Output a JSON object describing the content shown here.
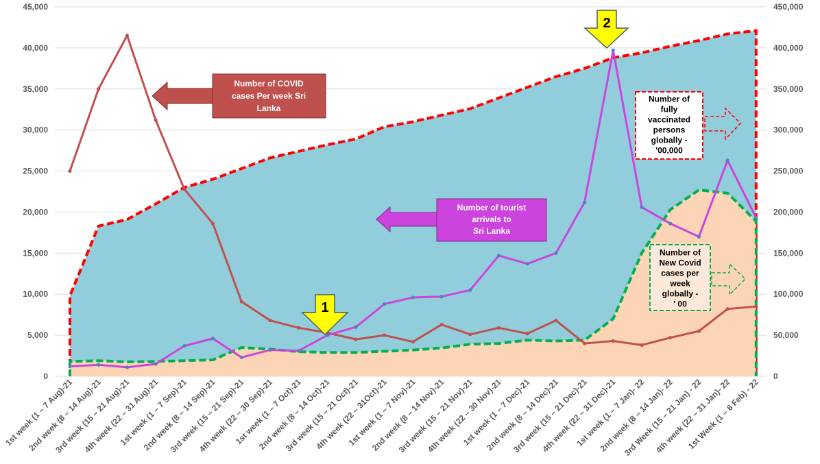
{
  "chart_data": {
    "type": "line",
    "categories": [
      "1st week (1 – 7 Aug)-21",
      "2nd week (8 – 14 Aug)-21",
      "3rd week (15 – 21 Aug)-21",
      "4th week (22 – 31 Aug)-21",
      "1st week (1 – 7 Sep)-21",
      "2nd week (8 – 14 Sep)-21",
      "3rd week (15 – 21 Sep)-21",
      "4th week (22 – 30 Sep)-21",
      "1st week (1 – 7 Oct)-21",
      "2nd week (8 – 14 Oct)-21",
      "3rd week (15 – 21 Oct)-21",
      "4th week (22 – 31Oct)-21",
      "1st week (1 – 7 Nov)-21",
      "2nd week (8 – 14 Nov)-21",
      "3rd week (15 – 21 Nov)-21",
      "4th week (22 – 30 Nov)-21",
      "1st week (1 – 7 Dec)-21",
      "2nd week (8 – 14 Dec)-21",
      "3rd week (15 – 21 Dec)-21",
      "4th week (22 – 31 Dec)-21",
      "1st week (1 – 7 Jan)- 22",
      "2nd week (8 – 14 Jan)- 22",
      "3rd Week (15 – 21 Jan) - 22",
      "4th week (22 – 31 Jan)- 22",
      "1st Week (1 – 6 Feb) - 22"
    ],
    "left_axis": {
      "ylim": [
        0,
        45000
      ],
      "tick_labels": [
        "0",
        "5,000",
        "10,000",
        "15,000",
        "20,000",
        "25,000",
        "30,000",
        "35,000",
        "40,000",
        "45,000"
      ]
    },
    "right_axis": {
      "ylim": [
        0,
        450000
      ],
      "tick_labels": [
        "0",
        "50,000",
        "100,000",
        "150,000",
        "200,000",
        "250,000",
        "300,000",
        "350,000",
        "400,000",
        "450,000"
      ]
    },
    "grid": true,
    "series": [
      {
        "name": "Number of fully vaccinated persons globally - '00,000",
        "kind": "area",
        "axis": "right",
        "fill": "#92cddc",
        "stroke": "#ff0000",
        "values": [
          98000,
          183000,
          191000,
          210000,
          230000,
          240000,
          253000,
          266000,
          274000,
          282000,
          289000,
          304000,
          310000,
          318000,
          326000,
          339000,
          352000,
          365000,
          375000,
          388000,
          394000,
          402000,
          409000,
          417000,
          421000
        ]
      },
      {
        "name": "Number of New Covid cases per week globally - ' 00",
        "kind": "area",
        "axis": "right",
        "fill": "#fbd5b5",
        "stroke": "#00b050",
        "values": [
          18000,
          19000,
          17500,
          18000,
          19000,
          20000,
          35000,
          33000,
          30000,
          29000,
          29000,
          30500,
          32000,
          34500,
          39000,
          40000,
          44000,
          43000,
          44000,
          70000,
          150000,
          203000,
          227000,
          223000,
          189000
        ]
      },
      {
        "name": "Number of COVID cases Per week  Sri Lanka",
        "kind": "line",
        "axis": "left",
        "color": "#c0504d",
        "values": [
          25000,
          35000,
          41500,
          31200,
          22800,
          18600,
          9100,
          6800,
          5900,
          5300,
          4500,
          5000,
          4200,
          6300,
          5100,
          5900,
          5200,
          6800,
          4000,
          4300,
          3800,
          4700,
          5500,
          8200,
          8500
        ]
      },
      {
        "name": "Number of tourist arrivals to Sri Lanka",
        "kind": "line",
        "axis": "left",
        "color": "#cc44dd",
        "values": [
          1200,
          1400,
          1100,
          1500,
          3700,
          4600,
          2300,
          3200,
          3100,
          5000,
          6000,
          8800,
          9600,
          9700,
          10500,
          14700,
          13700,
          15000,
          21200,
          39700,
          20600,
          18600,
          17000,
          26300,
          19300
        ]
      }
    ],
    "annotations": {
      "covid_sl": "Number of COVID cases Per week  Sri Lanka",
      "tourists": "Number of tourist arrivals to Sri Lanka",
      "vaccinated": "Number of fully vaccinated persons globally - '00,000",
      "new_cases": "Number of New Covid cases per week globally - ' 00",
      "marker_1": "1",
      "marker_2": "2"
    }
  }
}
